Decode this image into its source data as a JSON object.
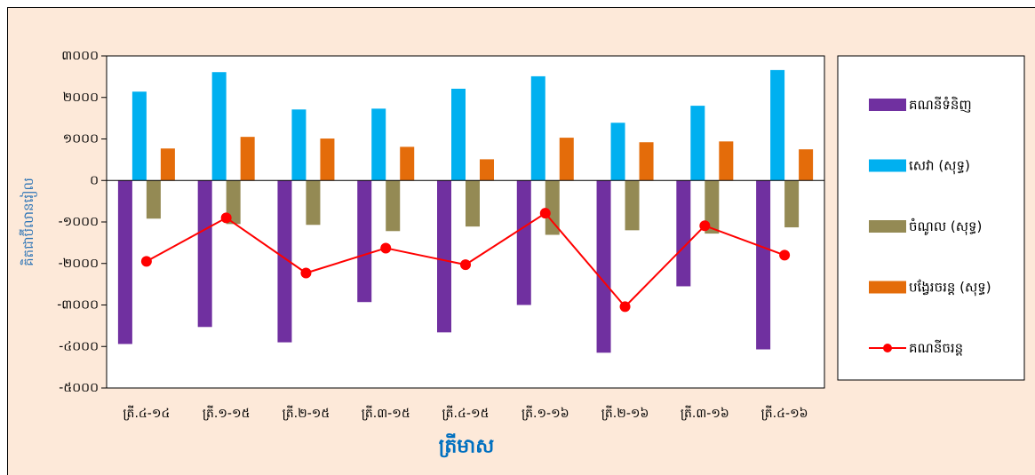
{
  "colors": {
    "background": "#FDE9D9",
    "plot_background": "#FFFFFF",
    "y_axis_title": "#2E75B6",
    "x_axis_title": "#0070C0"
  },
  "chart_data": {
    "type": "bar",
    "categories": [
      "ត្រី.៤-១៤",
      "ត្រី.១-១៥",
      "ត្រី.២-១៥",
      "ត្រី.៣-១៥",
      "ត្រី.៤-១៥",
      "ត្រី.១-១៦",
      "ត្រី.២-១៦",
      "ត្រី.៣-១៦",
      "ត្រី.៤-១៦"
    ],
    "series": [
      {
        "name": "គណនីទំនិញ",
        "type": "bar",
        "color": "#7030A0",
        "values": [
          -3940,
          -3530,
          -3900,
          -2930,
          -3660,
          -3000,
          -4150,
          -2550,
          -4070
        ]
      },
      {
        "name": "សេវា (សុទ្ធ)",
        "type": "bar",
        "color": "#00B0F0",
        "values": [
          2140,
          2610,
          1710,
          1730,
          2210,
          2510,
          1390,
          1800,
          2660
        ]
      },
      {
        "name": "ចំណូល (សុទ្ធ)",
        "type": "bar",
        "color": "#948A54",
        "values": [
          -920,
          -1050,
          -1070,
          -1220,
          -1110,
          -1310,
          -1200,
          -1280,
          -1130
        ]
      },
      {
        "name": "បង្វែរចរន្ត (សុទ្ធ)",
        "type": "bar",
        "color": "#E46C0A",
        "values": [
          770,
          1050,
          1010,
          810,
          510,
          1030,
          920,
          940,
          750
        ]
      },
      {
        "name": "គណនីចរន្ត",
        "type": "line",
        "color": "#FF0000",
        "marker": "circle",
        "values": [
          -1950,
          -900,
          -2230,
          -1630,
          -2030,
          -790,
          -3040,
          -1090,
          -1800
        ]
      }
    ],
    "xlabel": "ត្រីមាស",
    "ylabel": "គិតជាប៊ីលានរៀល",
    "ylim": [
      -5000,
      3000
    ],
    "yticks": [
      3000,
      2000,
      1000,
      0,
      -1000,
      -2000,
      -3000,
      -4000,
      -5000
    ],
    "ytick_labels": [
      "៣០០០",
      "២០០០",
      "១០០០",
      "០",
      "-១០០០",
      "-២០០០",
      "-៣០០០",
      "-៤០០០",
      "-៥០០០"
    ],
    "grid": false,
    "legend": "right"
  }
}
